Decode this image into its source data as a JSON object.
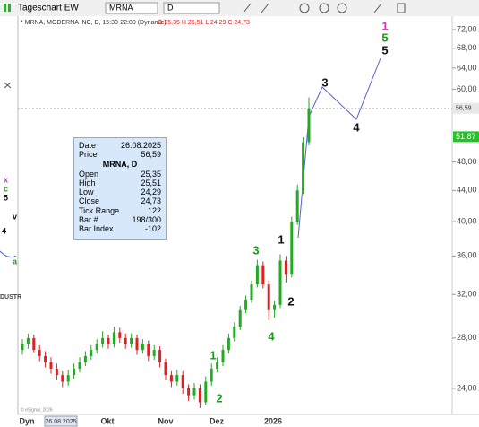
{
  "toolbar": {
    "title": "Tageschart EW",
    "symbol": "MRNA",
    "interval": "D"
  },
  "chart": {
    "header": "* MRNA, MODERNA INC, D, 15:30-22:00 (Dynamic)",
    "ohlc_label": "O 25,35 H 25,51 L 24,29 C 24,73",
    "log_scale": true,
    "ylim": [
      24,
      72
    ],
    "y_labels": [
      {
        "value": 72,
        "label": "72,00"
      },
      {
        "value": 68,
        "label": "68,00"
      },
      {
        "value": 64,
        "label": "64,00"
      },
      {
        "value": 60,
        "label": "60,00"
      },
      {
        "value": 48,
        "label": "48,00"
      },
      {
        "value": 44,
        "label": "44,00"
      },
      {
        "value": 40,
        "label": "40,00"
      },
      {
        "value": 36,
        "label": "36,00"
      },
      {
        "value": 32,
        "label": "32,00"
      },
      {
        "value": 28,
        "label": "28,00"
      },
      {
        "value": 24,
        "label": "24,00"
      }
    ],
    "price_tags": [
      {
        "value": 56.59,
        "label": "56,59",
        "color": "#e8e8e8"
      },
      {
        "value": 51.87,
        "label": "51,87",
        "color": "#22c322"
      }
    ],
    "x_labels": [
      "Dyn",
      "26.08.2025",
      "Okt",
      "Nov",
      "Dez",
      "2026"
    ],
    "wave_labels": [
      {
        "text": "1",
        "color": "#1a9a1a"
      },
      {
        "text": "2",
        "color": "#1a9a1a"
      },
      {
        "text": "3",
        "color": "#1a9a1a"
      },
      {
        "text": "4",
        "color": "#1a9a1a"
      },
      {
        "text": "1",
        "color": "#111111"
      },
      {
        "text": "2",
        "color": "#111111"
      },
      {
        "text": "3",
        "color": "#111111"
      },
      {
        "text": "4",
        "color": "#111111"
      },
      {
        "text": "5",
        "color": "#111111"
      },
      {
        "text": "5",
        "color": "#1a9a1a"
      },
      {
        "text": "1",
        "color": "#e030c0"
      }
    ],
    "up_color": "#22aa22",
    "down_color": "#dd2222",
    "candles": [
      [
        27,
        27.9,
        26.6,
        27.5
      ],
      [
        27.5,
        28.4,
        27.1,
        28
      ],
      [
        28,
        28.3,
        26.8,
        27
      ],
      [
        27,
        27.4,
        26.1,
        26.5
      ],
      [
        26.5,
        26.9,
        25.6,
        26
      ],
      [
        26,
        26.4,
        25.1,
        25.5
      ],
      [
        25.5,
        25.9,
        24.6,
        25
      ],
      [
        25,
        25.3,
        24.1,
        24.5
      ],
      [
        24.5,
        25.4,
        24.2,
        25
      ],
      [
        25,
        25.9,
        24.7,
        25.5
      ],
      [
        25.5,
        26.4,
        25.2,
        26
      ],
      [
        26,
        26.9,
        25.7,
        26.5
      ],
      [
        26.5,
        27.4,
        26.2,
        27
      ],
      [
        27,
        27.9,
        26.7,
        27.5
      ],
      [
        27.5,
        28.6,
        27.2,
        28
      ],
      [
        28,
        28.3,
        27.1,
        27.5
      ],
      [
        27.5,
        29,
        27.2,
        28.5
      ],
      [
        28.5,
        28.9,
        27.6,
        28
      ],
      [
        28,
        28.4,
        27.1,
        27.5
      ],
      [
        27.5,
        28.4,
        27.2,
        28
      ],
      [
        28,
        28.3,
        26.6,
        27
      ],
      [
        27,
        27.9,
        26.7,
        27.5
      ],
      [
        27.5,
        27.8,
        26.1,
        26.5
      ],
      [
        26.5,
        27.4,
        26.2,
        27
      ],
      [
        27,
        27.3,
        25.6,
        26
      ],
      [
        26,
        26.3,
        24.6,
        25
      ],
      [
        25,
        25.3,
        24.1,
        24.5
      ],
      [
        24.5,
        25.4,
        24.2,
        25
      ],
      [
        25,
        25.3,
        23.6,
        24
      ],
      [
        24,
        24.3,
        23.1,
        23.5
      ],
      [
        23.5,
        24.4,
        23.2,
        24
      ],
      [
        24,
        24.3,
        22.6,
        23
      ],
      [
        23,
        24.9,
        22.8,
        24.5
      ],
      [
        24.5,
        25.9,
        24.2,
        25.5
      ],
      [
        25.5,
        26.4,
        25.2,
        26
      ],
      [
        26,
        27.4,
        25.7,
        27
      ],
      [
        27,
        28.4,
        26.7,
        28
      ],
      [
        28,
        29.4,
        27.7,
        29
      ],
      [
        29,
        30.9,
        28.7,
        30.5
      ],
      [
        30.5,
        31.9,
        30.2,
        31.5
      ],
      [
        31.5,
        33.4,
        31.2,
        33
      ],
      [
        33,
        35.6,
        32.7,
        35
      ],
      [
        35,
        35.4,
        32.6,
        33
      ],
      [
        33,
        33.4,
        29.6,
        30.5
      ],
      [
        30.5,
        31.4,
        29.8,
        31
      ],
      [
        31,
        36.2,
        30.7,
        35.5
      ],
      [
        35.5,
        36,
        33.2,
        34
      ],
      [
        34,
        40.6,
        33.7,
        40
      ],
      [
        40,
        44.8,
        39.6,
        44
      ],
      [
        44,
        51.8,
        43.5,
        51
      ],
      [
        51,
        58.5,
        50.5,
        56.59
      ]
    ],
    "copyright": "© eSignal, 2026"
  },
  "info_box": {
    "heading": "MRNA, D",
    "rows": [
      [
        "Date",
        "26.08.2025"
      ],
      [
        "Price",
        "56,59"
      ],
      [
        "Open",
        "25,35"
      ],
      [
        "High",
        "25,51"
      ],
      [
        "Low",
        "24,29"
      ],
      [
        "Close",
        "24,73"
      ],
      [
        "Tick Range",
        "122"
      ],
      [
        "Bar #",
        "198/300"
      ],
      [
        "Bar Index",
        "-102"
      ]
    ]
  },
  "side_panel": {
    "labels": [
      "x",
      "c",
      "5",
      "4",
      "v",
      "a",
      "DUSTR"
    ]
  }
}
